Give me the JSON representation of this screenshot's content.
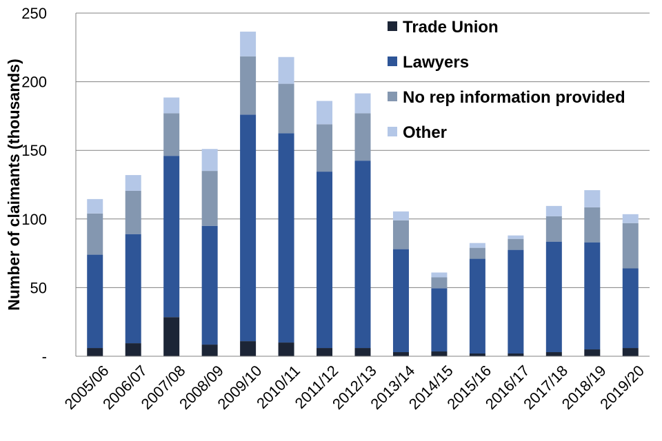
{
  "chart_data": {
    "type": "bar",
    "stacked": true,
    "ylabel": "Number of claimants (thousands)",
    "xlabel": "",
    "ylim": [
      0,
      250
    ],
    "yticks": [
      0,
      50,
      100,
      150,
      200,
      250
    ],
    "ytick_labels": [
      "-",
      "50",
      "100",
      "150",
      "200",
      "250"
    ],
    "grid": "horizontal",
    "legend_position": "top-right",
    "categories": [
      "2005/06",
      "2006/07",
      "2007/08",
      "2008/09",
      "2009/10",
      "2010/11",
      "2011/12",
      "2012/13",
      "2013/14",
      "2014/15",
      "2015/16",
      "2016/17",
      "2017/18",
      "2018/19",
      "2019/20"
    ],
    "series": [
      {
        "name": "Trade Union",
        "color": "#1c2536",
        "values": [
          6,
          9.5,
          28.5,
          8.5,
          11,
          10,
          6,
          6,
          3,
          3.5,
          2,
          2,
          3,
          5,
          6
        ]
      },
      {
        "name": "Lawyers",
        "color": "#2e5597",
        "values": [
          68,
          79.5,
          117.5,
          86.5,
          165,
          152.5,
          128.5,
          136.5,
          75,
          46,
          69,
          75.5,
          80.5,
          78,
          58
        ]
      },
      {
        "name": "No rep information provided",
        "color": "#8497b0",
        "values": [
          30,
          31.5,
          31,
          40,
          42.5,
          36,
          34.5,
          34.5,
          21,
          8,
          8,
          8,
          18.5,
          25.5,
          33
        ]
      },
      {
        "name": "Other",
        "color": "#b4c7e7",
        "values": [
          10.5,
          11.5,
          11.5,
          16,
          18,
          19.5,
          17,
          14.5,
          6.5,
          3.5,
          3.5,
          2.5,
          7.5,
          12.5,
          6.5
        ]
      }
    ]
  }
}
